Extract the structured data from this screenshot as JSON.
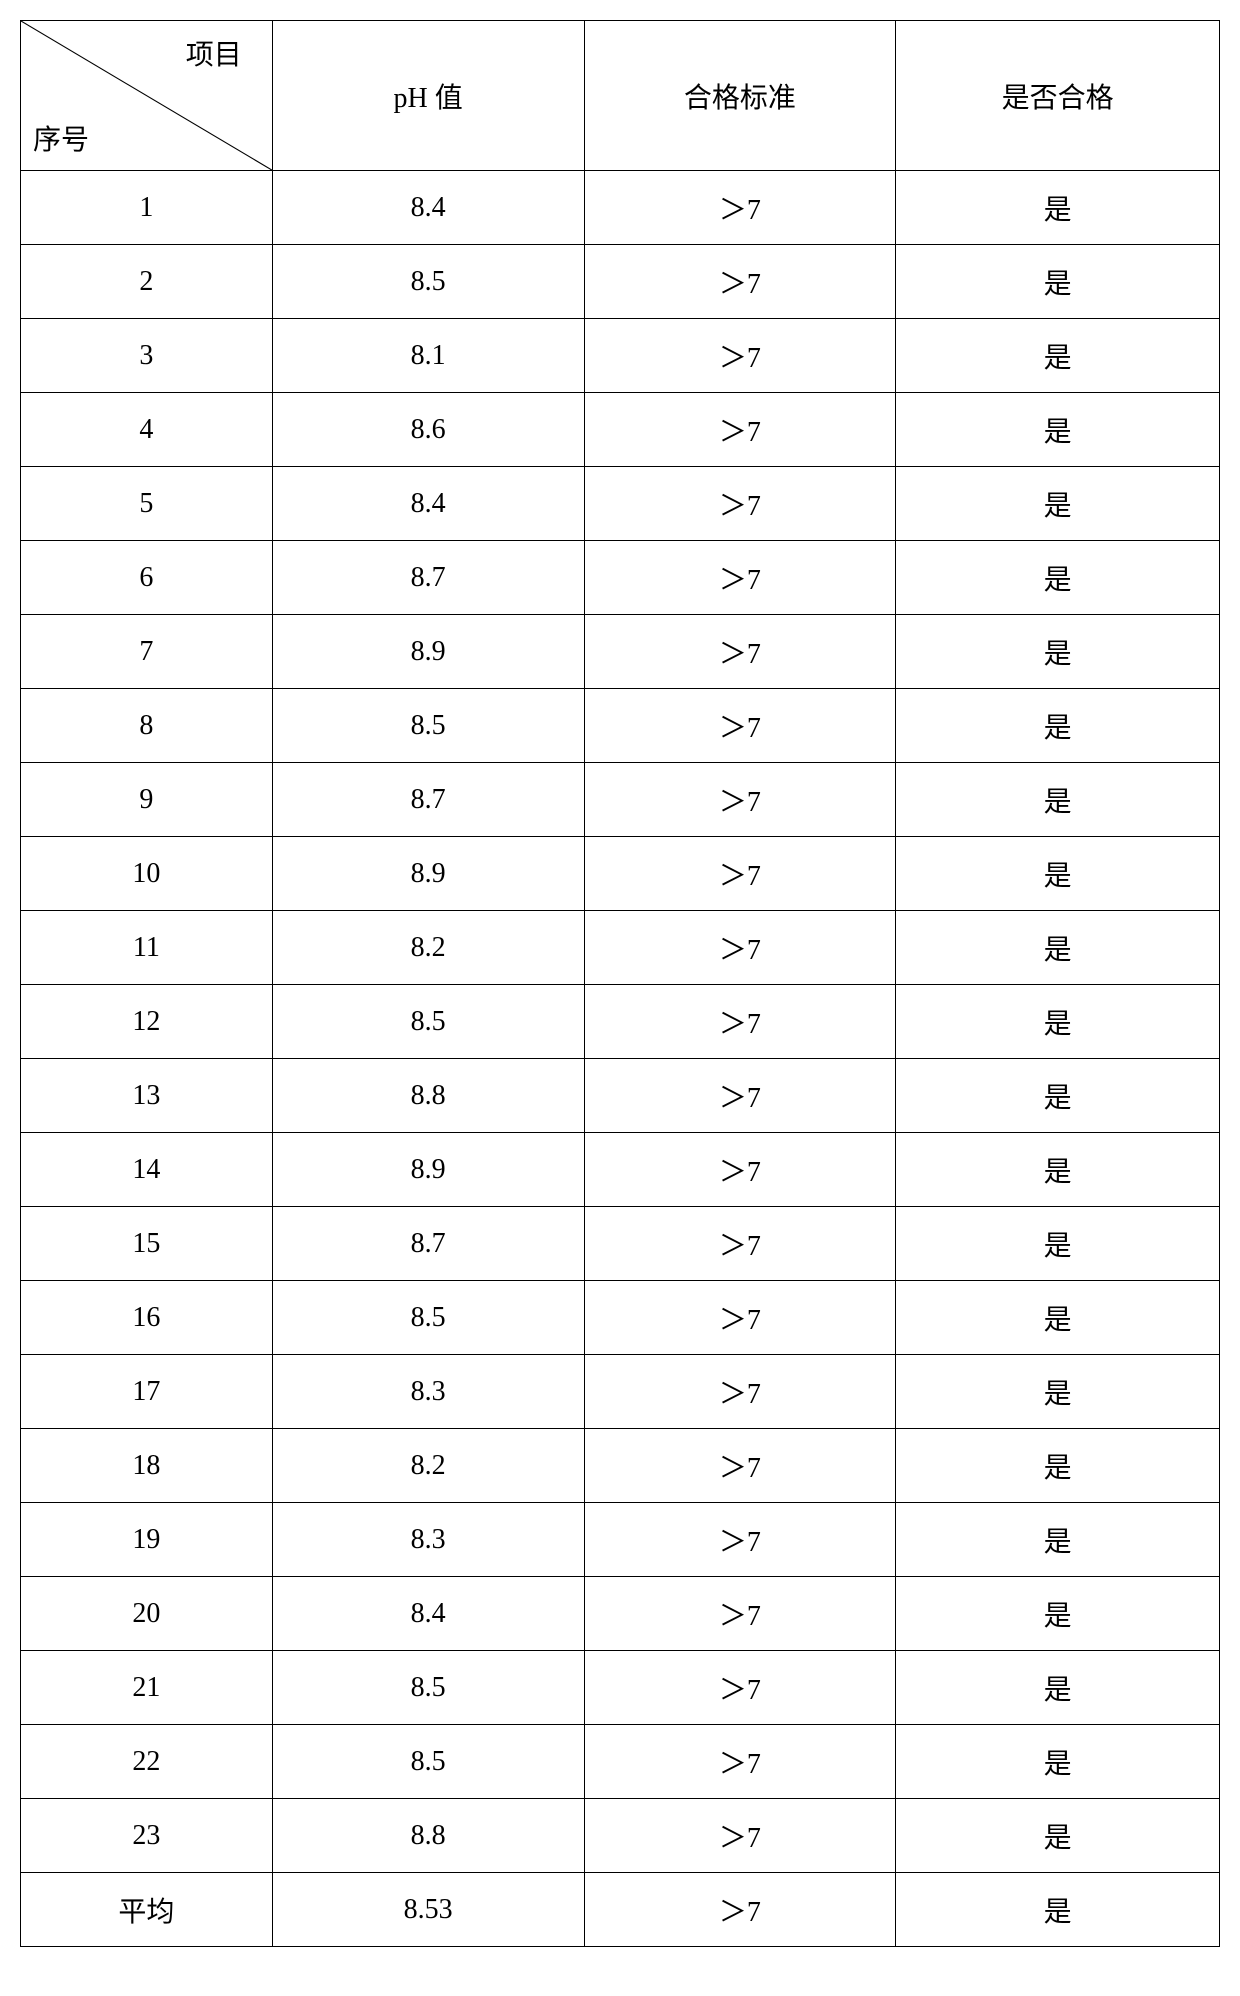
{
  "table": {
    "header": {
      "diagonal_top": "项目",
      "diagonal_bottom": "序号",
      "col_ph": "pH 值",
      "col_standard": "合格标准",
      "col_pass": "是否合格"
    },
    "rows": [
      {
        "serial": "1",
        "ph": "8.4",
        "standard": "＞7",
        "pass": "是"
      },
      {
        "serial": "2",
        "ph": "8.5",
        "standard": "＞7",
        "pass": "是"
      },
      {
        "serial": "3",
        "ph": "8.1",
        "standard": "＞7",
        "pass": "是"
      },
      {
        "serial": "4",
        "ph": "8.6",
        "standard": "＞7",
        "pass": "是"
      },
      {
        "serial": "5",
        "ph": "8.4",
        "standard": "＞7",
        "pass": "是"
      },
      {
        "serial": "6",
        "ph": "8.7",
        "standard": "＞7",
        "pass": "是"
      },
      {
        "serial": "7",
        "ph": "8.9",
        "standard": "＞7",
        "pass": "是"
      },
      {
        "serial": "8",
        "ph": "8.5",
        "standard": "＞7",
        "pass": "是"
      },
      {
        "serial": "9",
        "ph": "8.7",
        "standard": "＞7",
        "pass": "是"
      },
      {
        "serial": "10",
        "ph": "8.9",
        "standard": "＞7",
        "pass": "是"
      },
      {
        "serial": "11",
        "ph": "8.2",
        "standard": "＞7",
        "pass": "是"
      },
      {
        "serial": "12",
        "ph": "8.5",
        "standard": "＞7",
        "pass": "是"
      },
      {
        "serial": "13",
        "ph": "8.8",
        "standard": "＞7",
        "pass": "是"
      },
      {
        "serial": "14",
        "ph": "8.9",
        "standard": "＞7",
        "pass": "是"
      },
      {
        "serial": "15",
        "ph": "8.7",
        "standard": "＞7",
        "pass": "是"
      },
      {
        "serial": "16",
        "ph": "8.5",
        "standard": "＞7",
        "pass": "是"
      },
      {
        "serial": "17",
        "ph": "8.3",
        "standard": "＞7",
        "pass": "是"
      },
      {
        "serial": "18",
        "ph": "8.2",
        "standard": "＞7",
        "pass": "是"
      },
      {
        "serial": "19",
        "ph": "8.3",
        "standard": "＞7",
        "pass": "是"
      },
      {
        "serial": "20",
        "ph": "8.4",
        "standard": "＞7",
        "pass": "是"
      },
      {
        "serial": "21",
        "ph": "8.5",
        "standard": "＞7",
        "pass": "是"
      },
      {
        "serial": "22",
        "ph": "8.5",
        "standard": "＞7",
        "pass": "是"
      },
      {
        "serial": "23",
        "ph": "8.8",
        "standard": "＞7",
        "pass": "是"
      },
      {
        "serial": "平均",
        "ph": "8.53",
        "standard": "＞7",
        "pass": "是"
      }
    ],
    "styling": {
      "border_color": "#000000",
      "background_color": "#ffffff",
      "text_color": "#000000",
      "font_size": 28,
      "header_row_height": 150,
      "data_row_height": 74,
      "column_widths_percent": [
        21,
        26,
        26,
        27
      ]
    }
  }
}
